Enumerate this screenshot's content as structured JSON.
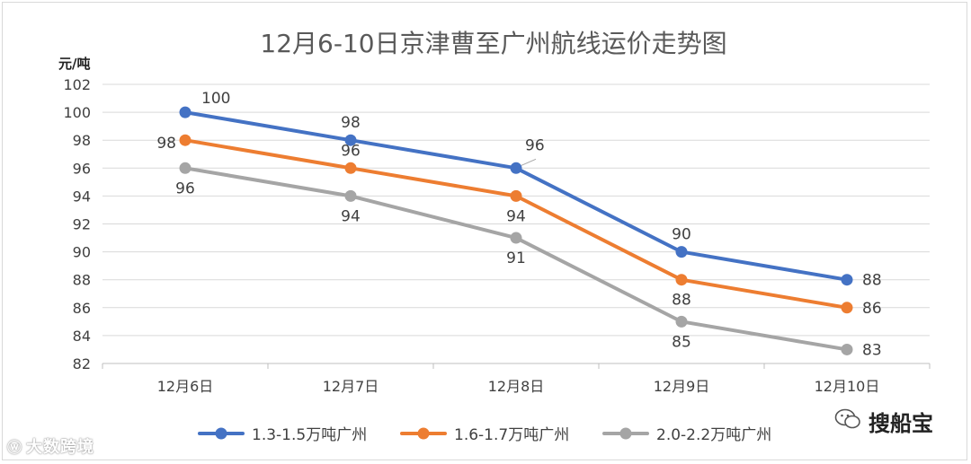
{
  "chart_data": {
    "type": "line",
    "title": "12月6-10日京津曹至广州航线运价走势图",
    "ylabel": "元/吨",
    "xlabel": "",
    "categories": [
      "12月6日",
      "12月7日",
      "12月8日",
      "12月9日",
      "12月10日"
    ],
    "ylim": [
      82,
      102
    ],
    "yticks": [
      82,
      84,
      86,
      88,
      90,
      92,
      94,
      96,
      98,
      100,
      102
    ],
    "grid": true,
    "legend_position": "bottom",
    "series": [
      {
        "name": "1.3-1.5万吨广州",
        "color": "#4472c4",
        "values": [
          100,
          98,
          96,
          90,
          88
        ]
      },
      {
        "name": "1.6-1.7万吨广州",
        "color": "#ed7d31",
        "values": [
          98,
          96,
          94,
          88,
          86
        ]
      },
      {
        "name": "2.0-2.2万吨广州",
        "color": "#a5a5a5",
        "values": [
          96,
          94,
          91,
          85,
          83
        ]
      }
    ]
  },
  "watermarks": {
    "left": "大数跨境",
    "right": "搜船宝"
  }
}
